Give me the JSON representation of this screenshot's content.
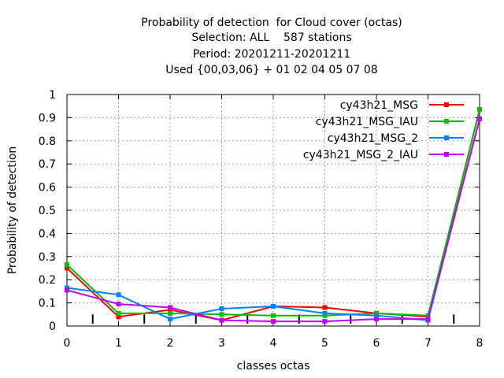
{
  "title_lines": [
    "Probability of detection  for Cloud cover (octas)",
    "Selection: ALL    587 stations",
    "Period: 20201211-20201211",
    "Used {00,03,06} + 01 02 04 05 07 08"
  ],
  "chart_data": {
    "type": "line",
    "title": "Probability of detection  for Cloud cover (octas)",
    "xlabel": "classes octas",
    "ylabel": "Probability of detection",
    "xlim": [
      0,
      8
    ],
    "ylim": [
      0,
      1
    ],
    "x": [
      0,
      1,
      2,
      3,
      4,
      5,
      6,
      7,
      8
    ],
    "xticks": [
      "0",
      "1",
      "2",
      "3",
      "4",
      "5",
      "6",
      "7",
      "8"
    ],
    "yticks": [
      "0",
      "0.1",
      "0.2",
      "0.3",
      "0.4",
      "0.5",
      "0.6",
      "0.7",
      "0.8",
      "0.9",
      "1"
    ],
    "grid": true,
    "legend_position": "top-right",
    "series": [
      {
        "name": "cy43h21_MSG",
        "color": "#ff0000",
        "values": [
          0.25,
          0.04,
          0.07,
          0.025,
          0.085,
          0.08,
          0.055,
          0.04,
          0.935
        ]
      },
      {
        "name": "cy43h21_MSG_IAU",
        "color": "#00c000",
        "values": [
          0.265,
          0.055,
          0.055,
          0.05,
          0.045,
          0.045,
          0.055,
          0.045,
          0.935
        ]
      },
      {
        "name": "cy43h21_MSG_2",
        "color": "#0080ff",
        "values": [
          0.165,
          0.135,
          0.03,
          0.075,
          0.085,
          0.055,
          0.045,
          0.025,
          0.895
        ]
      },
      {
        "name": "cy43h21_MSG_2_IAU",
        "color": "#c000ff",
        "values": [
          0.155,
          0.095,
          0.08,
          0.025,
          0.02,
          0.02,
          0.03,
          0.03,
          0.895
        ]
      }
    ]
  }
}
